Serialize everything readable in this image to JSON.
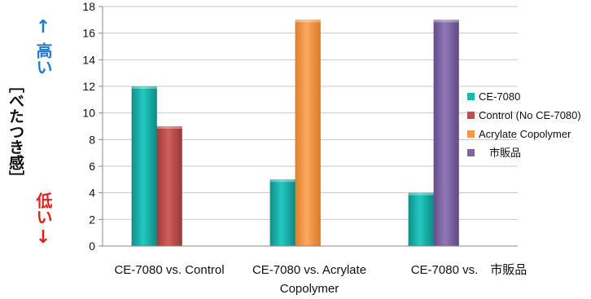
{
  "chart_data": {
    "type": "bar",
    "title": "",
    "xlabel": "",
    "ylabel": "［べたつき感］",
    "ylabel_high": "高い",
    "ylabel_high_arrow": "↑",
    "ylabel_low": "低い",
    "ylabel_low_arrow": "↓",
    "ylim": [
      0,
      18
    ],
    "yticks": [
      0,
      2,
      4,
      6,
      8,
      10,
      12,
      14,
      16,
      18
    ],
    "grid": true,
    "legend_position": "right",
    "categories": [
      "CE-7080 vs. Control",
      "CE-7080 vs. Acrylate Copolymer",
      "CE-7080 vs.　市販品"
    ],
    "category_lines": [
      [
        "CE-7080 vs. Control"
      ],
      [
        "CE-7080 vs. Acrylate",
        "Copolymer"
      ],
      [
        "CE-7080 vs.　市販品"
      ]
    ],
    "series": [
      {
        "name": "CE-7080",
        "color": "#18b8b0",
        "values": [
          12,
          5,
          4
        ]
      },
      {
        "name": "Control (No CE-7080)",
        "color": "#c0504d",
        "values": [
          9,
          null,
          null
        ]
      },
      {
        "name": "Acrylate Copolymer",
        "color": "#f79646",
        "values": [
          null,
          17,
          null
        ]
      },
      {
        "name": "　市販品",
        "color": "#8064a2",
        "values": [
          null,
          null,
          17
        ]
      }
    ],
    "accent_colors": {
      "high": "#1f7bd1",
      "low": "#e0201b",
      "grid": "#c8c8c8"
    }
  }
}
